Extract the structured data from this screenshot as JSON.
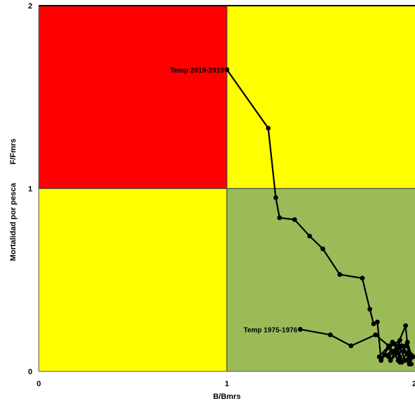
{
  "chart_data": {
    "type": "line",
    "title": "",
    "xlabel": "B/Bmrs",
    "ylabel_left": "Mortalidad por pesca",
    "ylabel_right": "F/Fmrs",
    "xlim": [
      0,
      2
    ],
    "ylim": [
      0,
      2
    ],
    "x_ticks": [
      "0",
      "1",
      "2"
    ],
    "y_ticks": [
      "0",
      "1",
      "2"
    ],
    "grid": false,
    "zones": [
      {
        "name": "overfished-overfishing",
        "color": "#ff0000",
        "x": [
          0,
          1
        ],
        "y": [
          1,
          2
        ]
      },
      {
        "name": "overfishing",
        "color": "#ffff00",
        "x": [
          1,
          2
        ],
        "y": [
          1,
          2
        ]
      },
      {
        "name": "overfished",
        "color": "#ffff00",
        "x": [
          0,
          1
        ],
        "y": [
          0,
          1
        ]
      },
      {
        "name": "sustainable",
        "color": "#9bbb59",
        "x": [
          1,
          2
        ],
        "y": [
          0,
          1
        ]
      }
    ],
    "annotations": [
      {
        "text": "Temp 2018-2019",
        "x": 1.0,
        "y": 1.65,
        "anchor": "end"
      },
      {
        "text": "Temp 1975-1976",
        "x": 1.39,
        "y": 0.23,
        "anchor": "end"
      }
    ],
    "series": [
      {
        "color": "#000000",
        "x": [
          1.39,
          1.55,
          1.66,
          1.79,
          1.86,
          1.81,
          1.82,
          1.88,
          1.86,
          1.92,
          1.91,
          1.93,
          1.98,
          1.96,
          1.97,
          1.94,
          1.95,
          1.9,
          1.92,
          1.89,
          1.91,
          1.87,
          1.9,
          1.86,
          1.88,
          1.92,
          1.95,
          1.98,
          1.96,
          1.93,
          1.91,
          1.89,
          1.95,
          1.97,
          1.99,
          1.96,
          1.92,
          1.88,
          1.84,
          1.82,
          1.8,
          1.78,
          1.76,
          1.72,
          1.6,
          1.51,
          1.44,
          1.36,
          1.28,
          1.26,
          1.22,
          1.0
        ],
        "y": [
          0.23,
          0.2,
          0.14,
          0.2,
          0.14,
          0.08,
          0.07,
          0.16,
          0.13,
          0.17,
          0.1,
          0.05,
          0.09,
          0.16,
          0.07,
          0.11,
          0.14,
          0.12,
          0.08,
          0.15,
          0.1,
          0.06,
          0.12,
          0.08,
          0.16,
          0.13,
          0.06,
          0.04,
          0.1,
          0.14,
          0.06,
          0.1,
          0.25,
          0.04,
          0.08,
          0.1,
          0.05,
          0.11,
          0.09,
          0.06,
          0.27,
          0.26,
          0.34,
          0.51,
          0.53,
          0.67,
          0.74,
          0.83,
          0.84,
          0.95,
          1.33,
          1.65
        ]
      }
    ]
  }
}
